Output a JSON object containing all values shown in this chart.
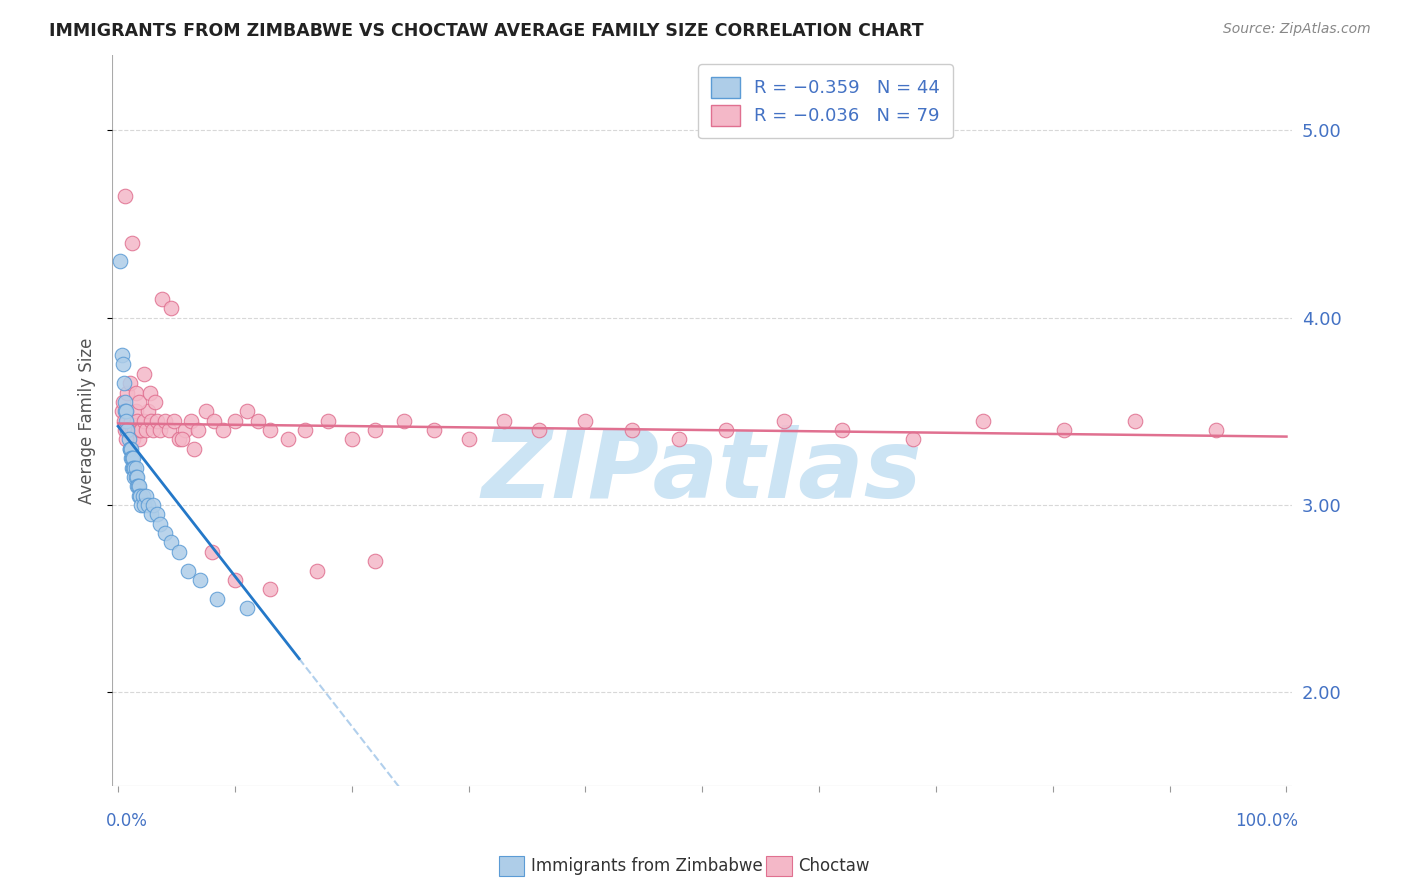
{
  "title": "IMMIGRANTS FROM ZIMBABWE VS CHOCTAW AVERAGE FAMILY SIZE CORRELATION CHART",
  "source": "Source: ZipAtlas.com",
  "ylabel": "Average Family Size",
  "yticks": [
    2.0,
    3.0,
    4.0,
    5.0
  ],
  "ylim": [
    1.5,
    5.4
  ],
  "xlim": [
    -0.005,
    1.005
  ],
  "zimbabwe_color": "#aecde8",
  "zimbabwe_edge": "#5b9bd5",
  "choctaw_color": "#f4b8c8",
  "choctaw_edge": "#e07090",
  "regression_zimbabwe_color": "#2478c8",
  "regression_choctaw_color": "#e07090",
  "regression_dashed_color": "#9ec4e8",
  "watermark": "ZIPatlas",
  "watermark_color": "#cce4f4",
  "background_color": "#ffffff",
  "grid_color": "#d8d8d8",
  "tick_color": "#4472c4",
  "label_color": "#333333",
  "source_color": "#888888",
  "legend_edge_color": "#cccccc",
  "zimbabwe_x": [
    0.002,
    0.003,
    0.004,
    0.005,
    0.006,
    0.006,
    0.007,
    0.007,
    0.008,
    0.009,
    0.01,
    0.01,
    0.011,
    0.011,
    0.012,
    0.012,
    0.013,
    0.013,
    0.014,
    0.014,
    0.015,
    0.015,
    0.016,
    0.016,
    0.017,
    0.018,
    0.018,
    0.019,
    0.02,
    0.021,
    0.022,
    0.024,
    0.026,
    0.028,
    0.03,
    0.033,
    0.036,
    0.04,
    0.045,
    0.052,
    0.06,
    0.07,
    0.085,
    0.11
  ],
  "zimbabwe_y": [
    4.3,
    3.8,
    3.75,
    3.65,
    3.55,
    3.5,
    3.5,
    3.45,
    3.4,
    3.35,
    3.3,
    3.3,
    3.3,
    3.25,
    3.25,
    3.2,
    3.25,
    3.2,
    3.2,
    3.15,
    3.2,
    3.15,
    3.15,
    3.1,
    3.1,
    3.1,
    3.05,
    3.05,
    3.0,
    3.05,
    3.0,
    3.05,
    3.0,
    2.95,
    3.0,
    2.95,
    2.9,
    2.85,
    2.8,
    2.75,
    2.65,
    2.6,
    2.5,
    2.45
  ],
  "choctaw_x": [
    0.003,
    0.004,
    0.005,
    0.006,
    0.007,
    0.008,
    0.009,
    0.01,
    0.011,
    0.012,
    0.013,
    0.014,
    0.015,
    0.016,
    0.017,
    0.018,
    0.019,
    0.02,
    0.022,
    0.024,
    0.026,
    0.028,
    0.03,
    0.033,
    0.036,
    0.04,
    0.044,
    0.048,
    0.052,
    0.057,
    0.062,
    0.068,
    0.075,
    0.082,
    0.09,
    0.1,
    0.11,
    0.12,
    0.13,
    0.145,
    0.16,
    0.18,
    0.2,
    0.22,
    0.245,
    0.27,
    0.3,
    0.33,
    0.36,
    0.4,
    0.44,
    0.48,
    0.52,
    0.57,
    0.62,
    0.68,
    0.74,
    0.81,
    0.87,
    0.94,
    0.006,
    0.007,
    0.008,
    0.01,
    0.012,
    0.015,
    0.018,
    0.022,
    0.027,
    0.032,
    0.038,
    0.045,
    0.055,
    0.065,
    0.08,
    0.1,
    0.13,
    0.17,
    0.22
  ],
  "choctaw_y": [
    3.5,
    3.55,
    3.45,
    3.4,
    3.5,
    3.45,
    3.4,
    3.4,
    3.45,
    3.4,
    3.35,
    3.4,
    3.5,
    3.45,
    3.4,
    3.35,
    3.4,
    3.4,
    3.45,
    3.4,
    3.5,
    3.45,
    3.4,
    3.45,
    3.4,
    3.45,
    3.4,
    3.45,
    3.35,
    3.4,
    3.45,
    3.4,
    3.5,
    3.45,
    3.4,
    3.45,
    3.5,
    3.45,
    3.4,
    3.35,
    3.4,
    3.45,
    3.35,
    3.4,
    3.45,
    3.4,
    3.35,
    3.45,
    3.4,
    3.45,
    3.4,
    3.35,
    3.4,
    3.45,
    3.4,
    3.35,
    3.45,
    3.4,
    3.45,
    3.4,
    4.65,
    3.35,
    3.6,
    3.65,
    4.4,
    3.6,
    3.55,
    3.7,
    3.6,
    3.55,
    4.1,
    4.05,
    3.35,
    3.3,
    2.75,
    2.6,
    2.55,
    2.65,
    2.7
  ]
}
